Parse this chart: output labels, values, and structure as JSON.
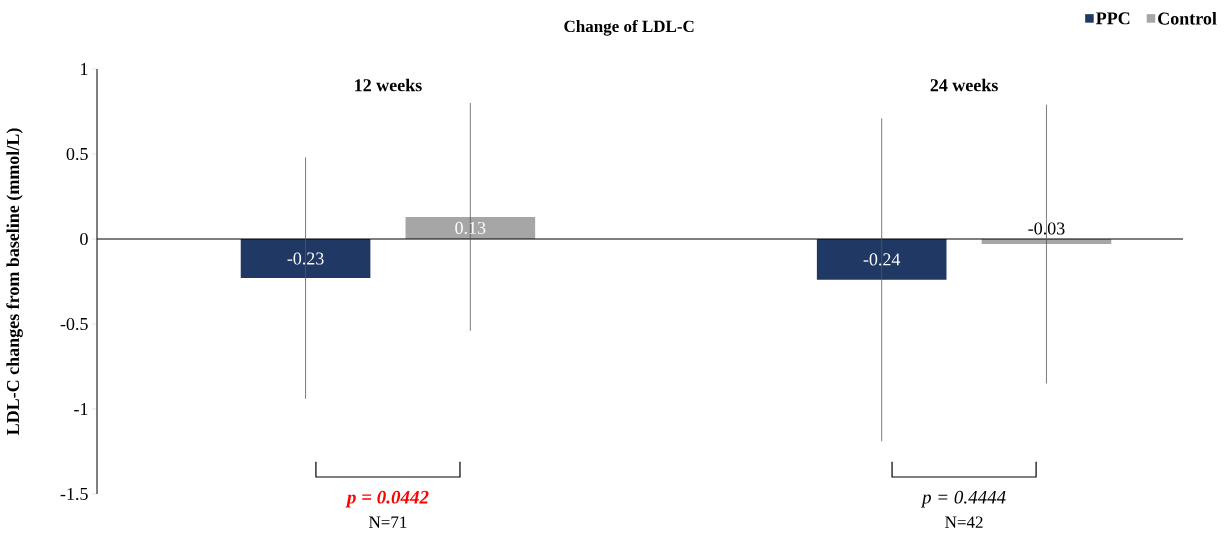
{
  "chart_data": {
    "type": "bar",
    "title": "Change of LDL-C",
    "ylabel": "LDL-C changes from baseline (mmol/L)",
    "categories": [
      "12 weeks",
      "24 weeks"
    ],
    "series": [
      {
        "name": "PPC",
        "color": "#1f3864",
        "values": [
          -0.23,
          -0.24
        ],
        "errors": [
          0.71,
          0.95
        ]
      },
      {
        "name": "Control",
        "color": "#a6a6a6",
        "values": [
          0.13,
          -0.03
        ],
        "errors": [
          0.67,
          0.82
        ]
      }
    ],
    "ylim": [
      -1.5,
      1
    ],
    "yticks": [
      -1.5,
      -1,
      -0.5,
      0,
      0.5,
      1
    ],
    "grid": false,
    "legend": "top right",
    "data_labels": true,
    "ref_lines": [
      {
        "axis": "y",
        "value": 0,
        "color": "#000000"
      }
    ],
    "annotations": [
      "p = 0.0442",
      "N=71",
      "p = 0.4444",
      "N=42"
    ]
  }
}
